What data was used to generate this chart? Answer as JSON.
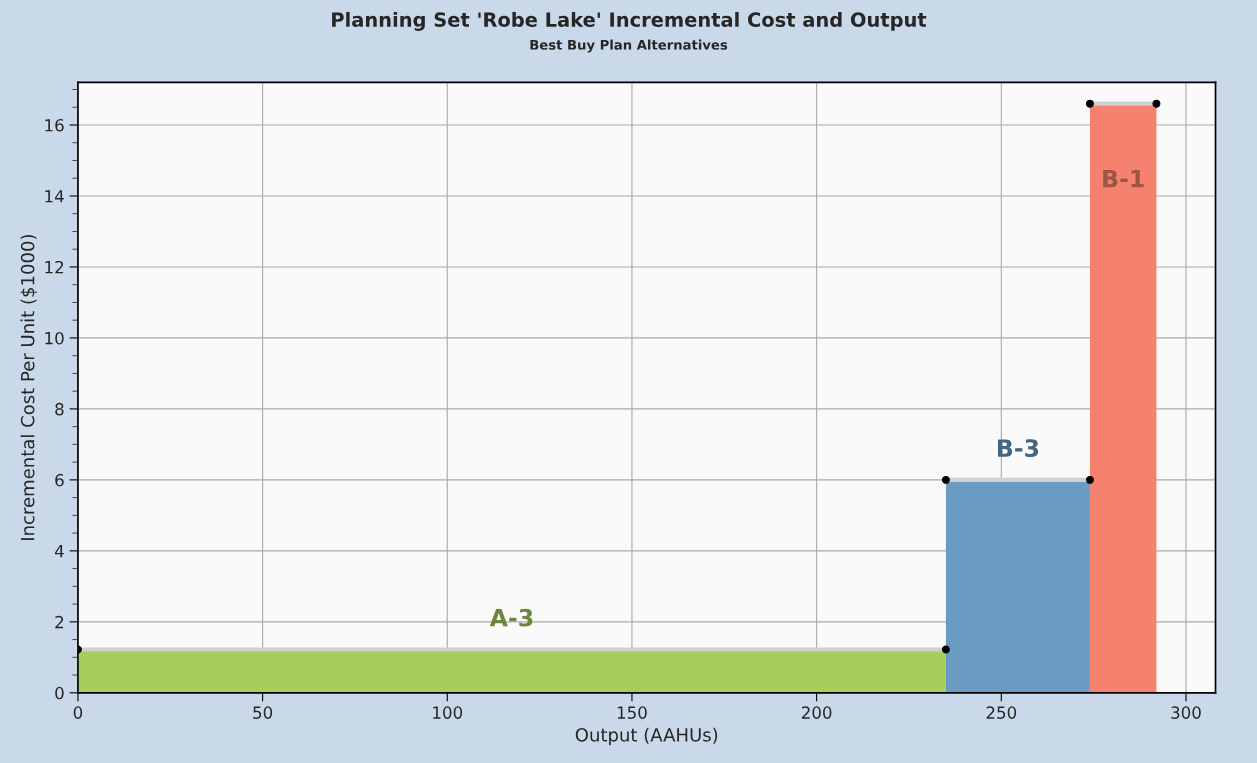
{
  "chart_data": {
    "type": "area",
    "title": "Planning Set 'Robe Lake' Incremental Cost and Output",
    "subtitle": "Best Buy Plan Alternatives",
    "xlabel": "Output (AAHUs)",
    "ylabel": "Incremental Cost Per Unit ($1000)",
    "series": [
      {
        "name": "A-3",
        "color": "#a5cf5a",
        "x": [
          0,
          235
        ],
        "values": [
          1.22,
          1.22
        ]
      },
      {
        "name": "B-3",
        "color": "#6a9bc3",
        "x": [
          235,
          274
        ],
        "values": [
          6.0,
          6.0
        ]
      },
      {
        "name": "B-1",
        "color": "#f4826e",
        "x": [
          274,
          292
        ],
        "values": [
          16.6,
          16.6
        ]
      }
    ],
    "xlim": [
      0,
      308
    ],
    "xticks": [
      0,
      50,
      100,
      150,
      200,
      250,
      300
    ],
    "ylim": [
      0,
      17.2
    ],
    "yticks": [
      0,
      2,
      4,
      6,
      8,
      10,
      12,
      14,
      16
    ],
    "grid": true,
    "marker": "circle",
    "legend": false
  }
}
